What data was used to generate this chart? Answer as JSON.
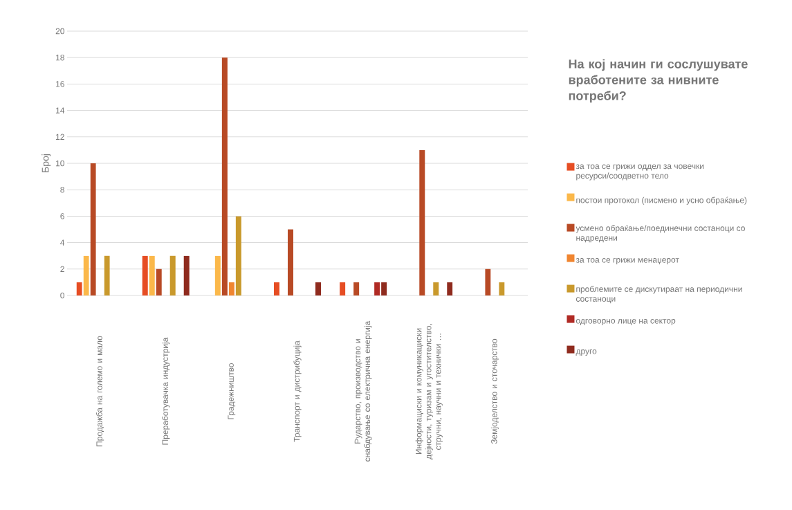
{
  "chart_data": {
    "type": "bar",
    "title": "На кој начин ги сослушувате вработените за нивните потреби?",
    "ylabel": "Број",
    "categories": [
      "Продажба на големо и мало",
      "Преработувачка индустрија",
      "Градежништво",
      "Транспорт и дистрибуција",
      "Рударство, производство и снабдување со електрична енергија",
      "Информациски и комуникациски дејности, туризам и угостителство, стручни, научни и технички  …",
      "Земјоделство и сточарство"
    ],
    "series": [
      {
        "name": "за тоа се грижи оддел за човечки ресурси/соодветно тело",
        "color": "#e64d23",
        "values": [
          1,
          3,
          null,
          1,
          1,
          null,
          null
        ]
      },
      {
        "name": "постои протокол (писмено и усно обраќање)",
        "color": "#fbb84a",
        "values": [
          3,
          3,
          3,
          null,
          null,
          null,
          null
        ]
      },
      {
        "name": "усмено обраќање/поединечни состаноци со надредени",
        "color": "#b84a25",
        "values": [
          10,
          2,
          18,
          5,
          1,
          11,
          2
        ]
      },
      {
        "name": "за тоа се грижи менаџерот",
        "color": "#f08530",
        "values": [
          null,
          null,
          1,
          null,
          null,
          null,
          null
        ]
      },
      {
        "name": "проблемите се дискутираат на периодични состаноци",
        "color": "#c9992c",
        "values": [
          3,
          3,
          6,
          null,
          null,
          1,
          1
        ]
      },
      {
        "name": "одговорно лице на сектор",
        "color": "#b02a24",
        "values": [
          null,
          null,
          null,
          null,
          1,
          null,
          null
        ]
      },
      {
        "name": "друго",
        "color": "#8f2b1e",
        "values": [
          null,
          3,
          null,
          1,
          1,
          1,
          null
        ]
      }
    ],
    "ylim": [
      0,
      20
    ],
    "yticks": [
      0,
      2,
      4,
      6,
      8,
      10,
      12,
      14,
      16,
      18,
      20
    ],
    "grid": "y",
    "legend": "right"
  }
}
